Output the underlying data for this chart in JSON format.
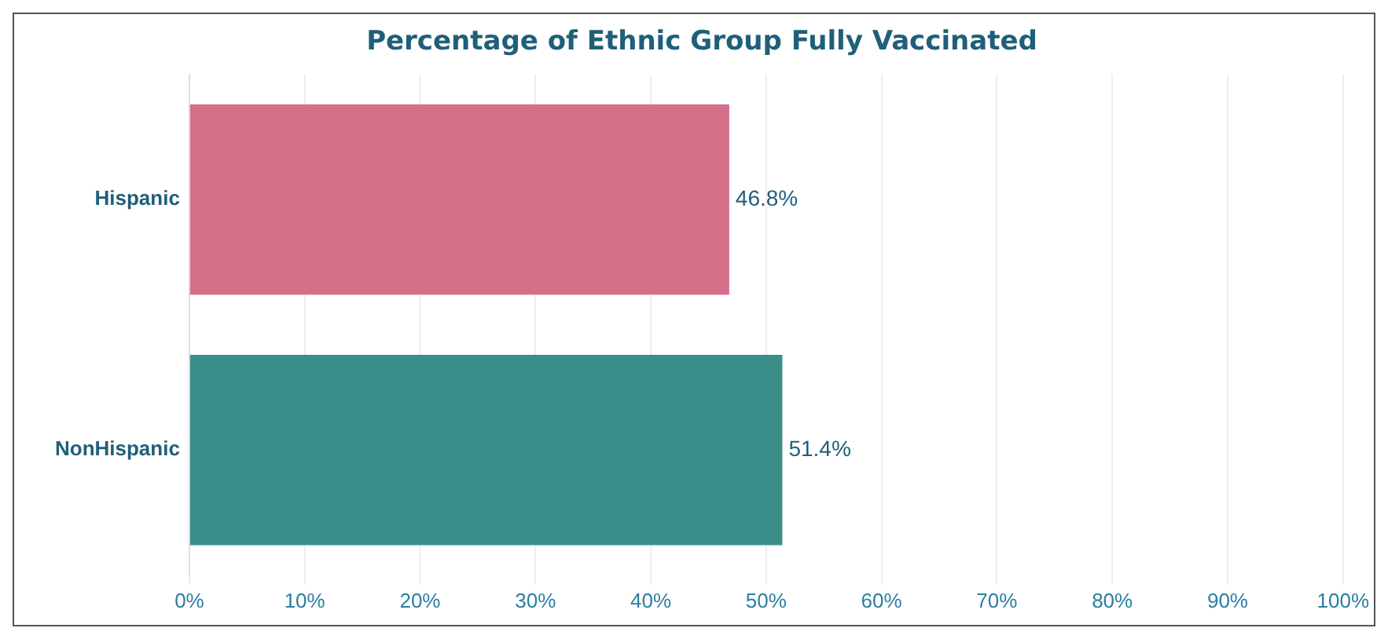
{
  "chart_data": {
    "type": "bar",
    "orientation": "horizontal",
    "title": "Percentage of Ethnic Group Fully Vaccinated",
    "categories": [
      "Hispanic",
      "NonHispanic"
    ],
    "values": [
      46.8,
      51.4
    ],
    "colors": [
      "#d36f89",
      "#3a8f8b"
    ],
    "value_labels": [
      "46.8%",
      "51.4%"
    ],
    "xlim": [
      0,
      100
    ],
    "xticks": [
      {
        "value": 0,
        "label": "0%"
      },
      {
        "value": 10,
        "label": "10%"
      },
      {
        "value": 20,
        "label": "20%"
      },
      {
        "value": 30,
        "label": "30%"
      },
      {
        "value": 40,
        "label": "40%"
      },
      {
        "value": 50,
        "label": "50%"
      },
      {
        "value": 60,
        "label": "60%"
      },
      {
        "value": 70,
        "label": "70%"
      },
      {
        "value": 80,
        "label": "80%"
      },
      {
        "value": 90,
        "label": "90%"
      },
      {
        "value": 100,
        "label": "100%"
      }
    ],
    "grid": "x",
    "legend": false
  }
}
